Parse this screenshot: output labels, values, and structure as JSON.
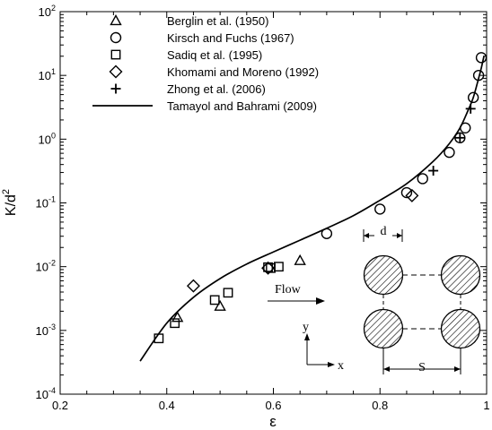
{
  "chart_data": {
    "type": "scatter",
    "xlabel": "ε",
    "ylabel_base": "K/d",
    "ylabel_exp": "2",
    "xlim": [
      0.2,
      1.0
    ],
    "ylim": [
      0.0001,
      100
    ],
    "yscale": "log",
    "x_ticks": [
      0.2,
      0.4,
      0.6,
      0.8,
      1.0
    ],
    "x_tick_labels": [
      "0.2",
      "0.4",
      "0.6",
      "0.8",
      "1"
    ],
    "y_ticks": [
      {
        "value": 0.0001,
        "exp": "-4"
      },
      {
        "value": 0.001,
        "exp": "-3"
      },
      {
        "value": 0.01,
        "exp": "-2"
      },
      {
        "value": 0.1,
        "exp": "-1"
      },
      {
        "value": 1,
        "exp": "0"
      },
      {
        "value": 10,
        "exp": "1"
      },
      {
        "value": 100,
        "exp": "2"
      }
    ],
    "grid": false,
    "legend_placement": "top-left",
    "series": [
      {
        "name": "Berglin et al. (1950)",
        "marker": "triangle",
        "points": [
          [
            0.42,
            0.0016
          ],
          [
            0.5,
            0.0024
          ],
          [
            0.65,
            0.0125
          ]
        ]
      },
      {
        "name": "Kirsch and Fuchs (1967)",
        "marker": "circle",
        "points": [
          [
            0.7,
            0.033
          ],
          [
            0.8,
            0.08
          ],
          [
            0.85,
            0.145
          ],
          [
            0.88,
            0.24
          ],
          [
            0.93,
            0.62
          ],
          [
            0.95,
            1.05
          ],
          [
            0.96,
            1.5
          ],
          [
            0.975,
            4.5
          ],
          [
            0.985,
            10
          ],
          [
            0.99,
            19
          ]
        ]
      },
      {
        "name": "Sadiq et al. (1995)",
        "marker": "square",
        "points": [
          [
            0.385,
            0.00075
          ],
          [
            0.415,
            0.0013
          ],
          [
            0.49,
            0.003
          ],
          [
            0.515,
            0.0039
          ],
          [
            0.59,
            0.0098
          ],
          [
            0.595,
            0.0095
          ],
          [
            0.61,
            0.01
          ]
        ]
      },
      {
        "name": "Khomami and Moreno (1992)",
        "marker": "diamond",
        "points": [
          [
            0.45,
            0.005
          ],
          [
            0.59,
            0.0095
          ],
          [
            0.86,
            0.13
          ]
        ]
      },
      {
        "name": "Zhong et al. (2006)",
        "marker": "plus",
        "points": [
          [
            0.9,
            0.32
          ],
          [
            0.95,
            1.05
          ],
          [
            0.97,
            3.0
          ]
        ]
      },
      {
        "name": "Tamayol and Bahrami (2009)",
        "marker": "line",
        "points": [
          [
            0.35,
            0.00033
          ],
          [
            0.4,
            0.0013
          ],
          [
            0.45,
            0.0033
          ],
          [
            0.5,
            0.0065
          ],
          [
            0.55,
            0.011
          ],
          [
            0.6,
            0.017
          ],
          [
            0.65,
            0.026
          ],
          [
            0.7,
            0.04
          ],
          [
            0.75,
            0.063
          ],
          [
            0.8,
            0.11
          ],
          [
            0.85,
            0.2
          ],
          [
            0.9,
            0.45
          ],
          [
            0.93,
            0.85
          ],
          [
            0.95,
            1.5
          ],
          [
            0.965,
            2.8
          ],
          [
            0.975,
            4.5
          ],
          [
            0.985,
            9
          ],
          [
            0.99,
            13
          ],
          [
            0.995,
            20
          ]
        ]
      }
    ]
  },
  "inset": {
    "d_label": "d",
    "s_label": "S",
    "flow_label": "Flow",
    "y_axis_label": "y",
    "x_axis_label": "x"
  }
}
